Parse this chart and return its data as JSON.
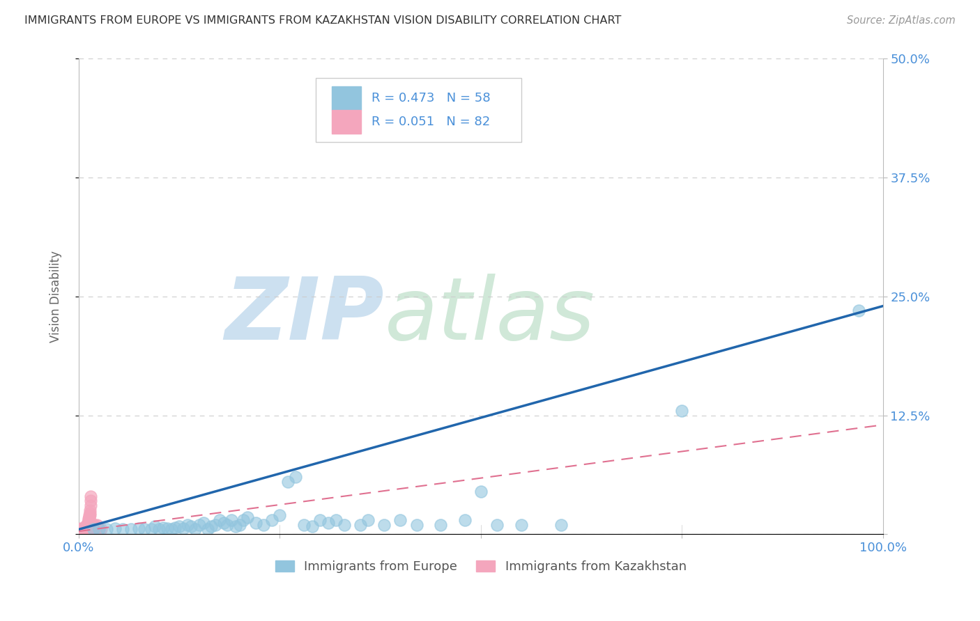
{
  "title": "IMMIGRANTS FROM EUROPE VS IMMIGRANTS FROM KAZAKHSTAN VISION DISABILITY CORRELATION CHART",
  "source": "Source: ZipAtlas.com",
  "ylabel": "Vision Disability",
  "xlim": [
    0,
    1.0
  ],
  "ylim": [
    0,
    0.5
  ],
  "color_europe": "#92c5de",
  "color_europe_fill": "none",
  "color_kazakhstan": "#f4a6bd",
  "color_kazakhstan_fill": "#f4a6bd",
  "color_europe_line": "#2166ac",
  "color_kazakhstan_line": "#e07090",
  "color_watermark_zip": "#c8dff0",
  "color_watermark_atlas": "#d8e8d0",
  "europe_scatter_x": [
    0.018,
    0.025,
    0.035,
    0.045,
    0.055,
    0.065,
    0.075,
    0.082,
    0.09,
    0.095,
    0.1,
    0.105,
    0.11,
    0.115,
    0.12,
    0.125,
    0.13,
    0.135,
    0.14,
    0.145,
    0.15,
    0.155,
    0.16,
    0.165,
    0.17,
    0.175,
    0.18,
    0.185,
    0.19,
    0.195,
    0.2,
    0.205,
    0.21,
    0.22,
    0.23,
    0.24,
    0.25,
    0.26,
    0.27,
    0.28,
    0.29,
    0.3,
    0.31,
    0.32,
    0.33,
    0.35,
    0.36,
    0.38,
    0.4,
    0.42,
    0.45,
    0.48,
    0.5,
    0.52,
    0.55,
    0.6,
    0.75,
    0.97
  ],
  "europe_scatter_y": [
    0.005,
    0.005,
    0.005,
    0.006,
    0.005,
    0.005,
    0.006,
    0.005,
    0.005,
    0.008,
    0.005,
    0.007,
    0.006,
    0.005,
    0.007,
    0.008,
    0.006,
    0.01,
    0.008,
    0.005,
    0.01,
    0.012,
    0.005,
    0.008,
    0.01,
    0.015,
    0.012,
    0.01,
    0.015,
    0.008,
    0.01,
    0.015,
    0.018,
    0.012,
    0.01,
    0.015,
    0.02,
    0.055,
    0.06,
    0.01,
    0.008,
    0.015,
    0.012,
    0.015,
    0.01,
    0.01,
    0.015,
    0.01,
    0.015,
    0.01,
    0.01,
    0.015,
    0.045,
    0.01,
    0.01,
    0.01,
    0.13,
    0.235
  ],
  "kazakhstan_scatter_x": [
    0.002,
    0.003,
    0.003,
    0.004,
    0.004,
    0.004,
    0.005,
    0.005,
    0.005,
    0.005,
    0.005,
    0.005,
    0.005,
    0.005,
    0.006,
    0.006,
    0.006,
    0.006,
    0.007,
    0.007,
    0.007,
    0.007,
    0.008,
    0.008,
    0.008,
    0.008,
    0.009,
    0.009,
    0.009,
    0.009,
    0.01,
    0.01,
    0.01,
    0.01,
    0.01,
    0.01,
    0.01,
    0.01,
    0.01,
    0.01,
    0.01,
    0.01,
    0.01,
    0.01,
    0.01,
    0.01,
    0.01,
    0.011,
    0.011,
    0.011,
    0.011,
    0.012,
    0.012,
    0.012,
    0.012,
    0.013,
    0.013,
    0.013,
    0.014,
    0.014,
    0.014,
    0.015,
    0.015,
    0.015,
    0.015,
    0.015,
    0.016,
    0.016,
    0.016,
    0.017,
    0.017,
    0.018,
    0.018,
    0.019,
    0.019,
    0.02,
    0.02,
    0.021,
    0.022,
    0.023,
    0.025,
    0.028
  ],
  "kazakhstan_scatter_y": [
    0.005,
    0.005,
    0.006,
    0.005,
    0.005,
    0.006,
    0.004,
    0.004,
    0.004,
    0.005,
    0.005,
    0.005,
    0.005,
    0.006,
    0.004,
    0.004,
    0.005,
    0.005,
    0.004,
    0.004,
    0.005,
    0.005,
    0.004,
    0.004,
    0.005,
    0.005,
    0.004,
    0.005,
    0.005,
    0.006,
    0.004,
    0.004,
    0.004,
    0.005,
    0.005,
    0.005,
    0.005,
    0.005,
    0.006,
    0.006,
    0.007,
    0.007,
    0.008,
    0.008,
    0.008,
    0.009,
    0.01,
    0.01,
    0.01,
    0.012,
    0.012,
    0.013,
    0.013,
    0.015,
    0.016,
    0.018,
    0.018,
    0.02,
    0.02,
    0.022,
    0.025,
    0.01,
    0.012,
    0.03,
    0.035,
    0.04,
    0.006,
    0.008,
    0.01,
    0.005,
    0.005,
    0.005,
    0.01,
    0.005,
    0.008,
    0.005,
    0.01,
    0.005,
    0.005,
    0.01,
    0.005,
    0.005
  ],
  "eur_line_x0": 0.0,
  "eur_line_x1": 1.0,
  "eur_line_y0": 0.005,
  "eur_line_y1": 0.24,
  "kaz_line_x0": 0.0,
  "kaz_line_x1": 1.0,
  "kaz_line_y0": 0.003,
  "kaz_line_y1": 0.115,
  "background_color": "#ffffff",
  "grid_color": "#cccccc",
  "tick_color": "#4a90d9",
  "title_color": "#333333",
  "source_color": "#999999",
  "ylabel_color": "#666666"
}
